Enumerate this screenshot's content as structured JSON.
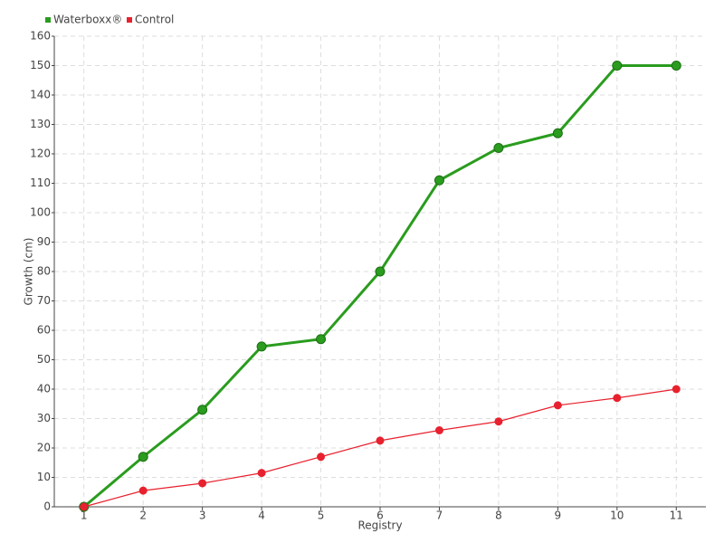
{
  "chart_data": {
    "type": "line",
    "x_label": "Registry",
    "y_label": "Growth (cm)",
    "categories": [
      "1",
      "2",
      "3",
      "4",
      "5",
      "6",
      "7",
      "8",
      "9",
      "10",
      "11"
    ],
    "series": [
      {
        "name": "Waterboxx®",
        "color": "#2a9c1e",
        "values": [
          0,
          17,
          33,
          54.5,
          57,
          80,
          111,
          122,
          127,
          150,
          150
        ]
      },
      {
        "name": "Control",
        "color": "#e8212e",
        "values": [
          0,
          5.5,
          8,
          11.5,
          17,
          22.5,
          26,
          29,
          34.5,
          37,
          40
        ]
      }
    ],
    "ylim": [
      0,
      160
    ],
    "yticks": [
      0,
      10,
      20,
      30,
      40,
      50,
      60,
      70,
      80,
      90,
      100,
      110,
      120,
      130,
      140,
      150,
      160
    ],
    "grid": true,
    "legend": "top-left"
  }
}
